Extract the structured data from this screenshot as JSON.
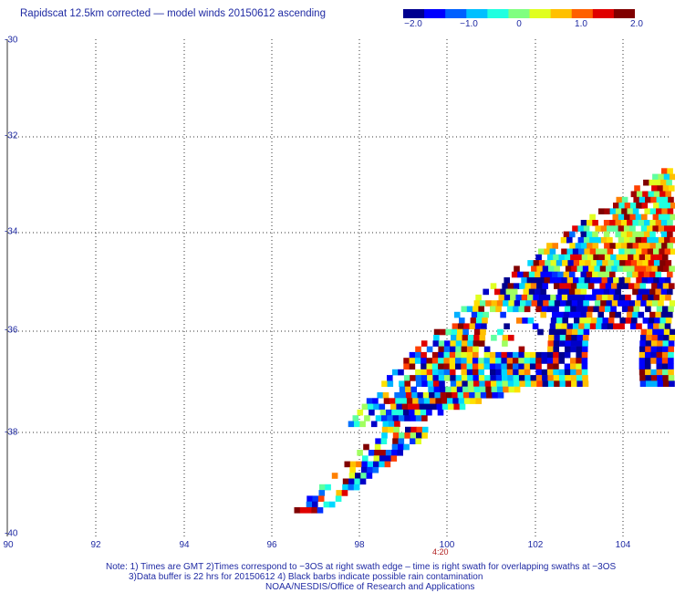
{
  "title": "Rapidscat 12.5km corrected — model winds 20150612 ascending",
  "colorbar": {
    "ticks": [
      "−2.0",
      "−1.0",
      "0",
      "1.0",
      "2.0"
    ],
    "colors": [
      "#00008f",
      "#0000ff",
      "#0060ff",
      "#00c0ff",
      "#20ffe0",
      "#80ff80",
      "#e0ff20",
      "#ffc000",
      "#ff6000",
      "#e00000",
      "#800000"
    ]
  },
  "axes": {
    "lon_labels": [
      "90",
      "92",
      "94",
      "96",
      "98",
      "100",
      "102",
      "104"
    ],
    "lat_labels": [
      "-30",
      "-32",
      "-34",
      "-36",
      "-38",
      "-40"
    ]
  },
  "time_label": "4:20",
  "notes": {
    "line1": "Note: 1) Times are GMT 2)Times correspond to −3OS at right swath edge – time is right swath for overlapping swaths at −3OS",
    "line2": "3)Data buffer is 22 hrs for 20150612 4) Black barbs indicate possible rain contamination",
    "line3": "NOAA/NESDIS/Office of Research and Applications"
  }
}
